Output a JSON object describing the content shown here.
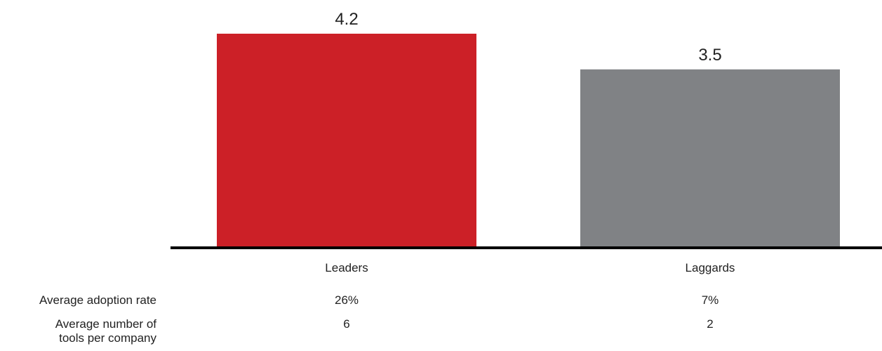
{
  "chart_data": {
    "type": "bar",
    "categories": [
      "Leaders",
      "Laggards"
    ],
    "values": [
      4.2,
      3.5
    ],
    "colors": [
      "#cc2027",
      "#808285"
    ],
    "data_labels": [
      "4.2",
      "3.5"
    ],
    "title": "",
    "xlabel": "",
    "ylabel": "",
    "ylim": [
      0,
      4.2
    ],
    "grid": false,
    "legend": "none"
  },
  "table": {
    "rows": [
      {
        "label": "Average adoption rate",
        "values": [
          "26%",
          "7%"
        ]
      },
      {
        "label_lines": [
          "Average number of",
          "tools per company"
        ],
        "values": [
          "6",
          "2"
        ]
      }
    ]
  }
}
